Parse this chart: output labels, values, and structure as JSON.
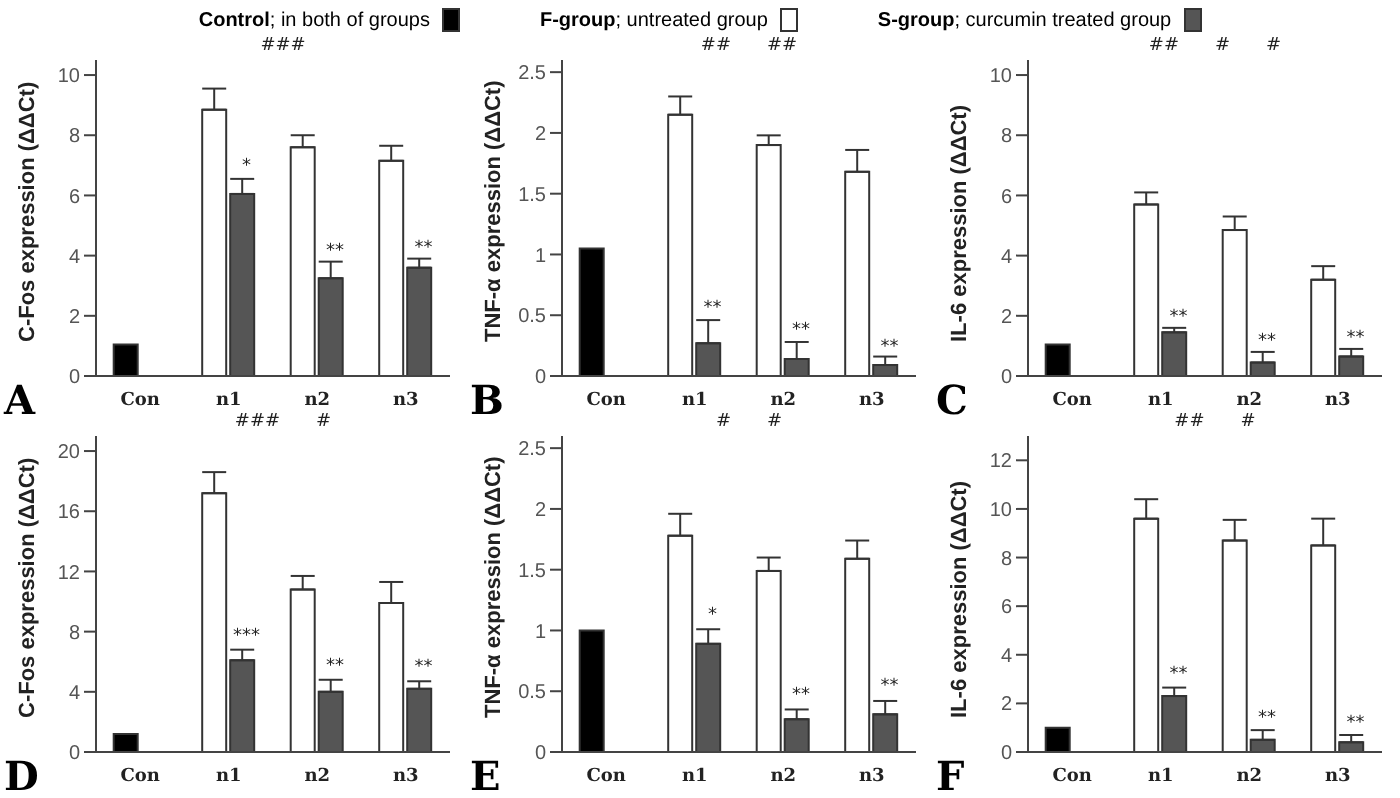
{
  "chart_data": [
    {
      "type": "bar",
      "ylabel": "C-Fos expression (ΔΔCt)",
      "categories": [
        "Con",
        "n1",
        "n2",
        "n3"
      ],
      "ylim": [
        0,
        10.5
      ],
      "yticks": [
        0,
        2,
        4,
        6,
        8,
        10
      ],
      "legend": "top",
      "series": [
        {
          "name": "Control; in both of groups",
          "color": "#000000",
          "values": [
            1.05,
            null,
            null,
            null
          ]
        },
        {
          "name": "F-group; untreated group",
          "color": "#ffffff",
          "values": [
            null,
            8.85,
            7.6,
            7.15
          ],
          "errors": [
            null,
            [
              8.85,
              9.55
            ],
            [
              7.6,
              8.0
            ],
            [
              7.15,
              7.65
            ]
          ]
        },
        {
          "name": "S-group; curcumin treated group",
          "color": "#555555",
          "values": [
            null,
            6.05,
            3.25,
            3.6
          ],
          "errors": [
            null,
            [
              6.05,
              6.55
            ],
            [
              3.25,
              3.8
            ],
            [
              3.6,
              3.9
            ]
          ]
        }
      ],
      "annotations": [
        "A",
        {
          "text": "*",
          "x": "n1",
          "y": 6.8
        },
        {
          "text": "**",
          "x": "n2",
          "y": 4.0
        },
        {
          "text": "**",
          "x": "n3",
          "y": 4.1
        },
        "###"
      ]
    },
    {
      "type": "bar",
      "ylabel": "TNF-α expression (ΔΔCt)",
      "categories": [
        "Con",
        "n1",
        "n2",
        "n3"
      ],
      "ylim": [
        0,
        2.6
      ],
      "yticks": [
        0,
        0.5,
        1,
        1.5,
        2,
        2.5
      ],
      "series": [
        {
          "color": "#000000",
          "values": [
            1.05,
            null,
            null,
            null
          ]
        },
        {
          "color": "#ffffff",
          "values": [
            null,
            2.15,
            1.9,
            1.68
          ],
          "errors": [
            null,
            [
              2.15,
              2.3
            ],
            [
              1.9,
              1.98
            ],
            [
              1.68,
              1.86
            ]
          ]
        },
        {
          "color": "#555555",
          "values": [
            null,
            0.27,
            0.14,
            0.09
          ],
          "errors": [
            null,
            [
              0.27,
              0.46
            ],
            [
              0.14,
              0.28
            ],
            [
              0.09,
              0.16
            ]
          ]
        }
      ],
      "annotations": [
        "B",
        {
          "text": "**",
          "x": "n1",
          "y": 0.52
        },
        {
          "text": "**",
          "x": "n2",
          "y": 0.34
        },
        {
          "text": "**",
          "x": "n3",
          "y": 0.2
        },
        "##",
        "##"
      ]
    },
    {
      "type": "bar",
      "ylabel": "IL-6 expression (ΔΔCt)",
      "categories": [
        "Con",
        "n1",
        "n2",
        "n3"
      ],
      "ylim": [
        0,
        10.5
      ],
      "yticks": [
        0,
        2,
        4,
        6,
        8,
        10
      ],
      "series": [
        {
          "color": "#000000",
          "values": [
            1.05,
            null,
            null,
            null
          ]
        },
        {
          "color": "#ffffff",
          "values": [
            null,
            5.7,
            4.85,
            3.2
          ],
          "errors": [
            null,
            [
              5.7,
              6.1
            ],
            [
              4.85,
              5.3
            ],
            [
              3.2,
              3.65
            ]
          ]
        },
        {
          "color": "#555555",
          "values": [
            null,
            1.45,
            0.45,
            0.65
          ],
          "errors": [
            null,
            [
              1.45,
              1.6
            ],
            [
              0.45,
              0.8
            ],
            [
              0.65,
              0.9
            ]
          ]
        }
      ],
      "annotations": [
        "C",
        {
          "text": "**",
          "x": "n1",
          "y": 1.8
        },
        {
          "text": "**",
          "x": "n2",
          "y": 1.0
        },
        {
          "text": "**",
          "x": "n3",
          "y": 1.1
        },
        "##",
        "#",
        "#"
      ]
    },
    {
      "type": "bar",
      "ylabel": "C-Fos expression (ΔΔCt)",
      "categories": [
        "Con",
        "n1",
        "n2",
        "n3"
      ],
      "ylim": [
        0,
        21
      ],
      "yticks": [
        0,
        4,
        8,
        12,
        16,
        20
      ],
      "series": [
        {
          "color": "#000000",
          "values": [
            1.2,
            null,
            null,
            null
          ]
        },
        {
          "color": "#ffffff",
          "values": [
            null,
            17.2,
            10.8,
            9.9
          ],
          "errors": [
            null,
            [
              17.2,
              18.6
            ],
            [
              10.8,
              11.7
            ],
            [
              9.9,
              11.3
            ]
          ]
        },
        {
          "color": "#555555",
          "values": [
            null,
            6.1,
            4.0,
            4.2
          ],
          "errors": [
            null,
            [
              6.1,
              6.8
            ],
            [
              4.0,
              4.8
            ],
            [
              4.2,
              4.7
            ]
          ]
        }
      ],
      "annotations": [
        "D",
        {
          "text": "***",
          "x": "n1",
          "y": 7.4
        },
        {
          "text": "**",
          "x": "n2",
          "y": 5.4
        },
        {
          "text": "**",
          "x": "n3",
          "y": 5.3
        },
        "###",
        "#"
      ]
    },
    {
      "type": "bar",
      "ylabel": "TNF-α expression (ΔΔCt)",
      "categories": [
        "Con",
        "n1",
        "n2",
        "n3"
      ],
      "ylim": [
        0,
        2.6
      ],
      "yticks": [
        0,
        0.5,
        1,
        1.5,
        2,
        2.5
      ],
      "series": [
        {
          "color": "#000000",
          "values": [
            1.0,
            null,
            null,
            null
          ]
        },
        {
          "color": "#ffffff",
          "values": [
            null,
            1.78,
            1.49,
            1.59
          ],
          "errors": [
            null,
            [
              1.78,
              1.96
            ],
            [
              1.49,
              1.6
            ],
            [
              1.59,
              1.74
            ]
          ]
        },
        {
          "color": "#555555",
          "values": [
            null,
            0.89,
            0.27,
            0.31
          ],
          "errors": [
            null,
            [
              0.89,
              1.01
            ],
            [
              0.27,
              0.35
            ],
            [
              0.31,
              0.42
            ]
          ]
        }
      ],
      "annotations": [
        "E",
        {
          "text": "*",
          "x": "n1",
          "y": 1.09
        },
        {
          "text": "**",
          "x": "n2",
          "y": 0.43
        },
        {
          "text": "**",
          "x": "n3",
          "y": 0.5
        },
        "#",
        "#"
      ]
    },
    {
      "type": "bar",
      "ylabel": "IL-6 expression (ΔΔCt)",
      "categories": [
        "Con",
        "n1",
        "n2",
        "n3"
      ],
      "ylim": [
        0,
        13
      ],
      "yticks": [
        0,
        2,
        4,
        6,
        8,
        10,
        12
      ],
      "series": [
        {
          "color": "#000000",
          "values": [
            1.0,
            null,
            null,
            null
          ]
        },
        {
          "color": "#ffffff",
          "values": [
            null,
            9.6,
            8.7,
            8.5
          ],
          "errors": [
            null,
            [
              9.6,
              10.4
            ],
            [
              8.7,
              9.55
            ],
            [
              8.5,
              9.6
            ]
          ]
        },
        {
          "color": "#555555",
          "values": [
            null,
            2.3,
            0.5,
            0.4
          ],
          "errors": [
            null,
            [
              2.3,
              2.65
            ],
            [
              0.5,
              0.9
            ],
            [
              0.4,
              0.7
            ]
          ]
        }
      ],
      "annotations": [
        "F",
        {
          "text": "**",
          "x": "n1",
          "y": 3.0
        },
        {
          "text": "**",
          "x": "n2",
          "y": 1.2
        },
        {
          "text": "**",
          "x": "n3",
          "y": 1.0
        },
        "##",
        "#"
      ]
    }
  ]
}
